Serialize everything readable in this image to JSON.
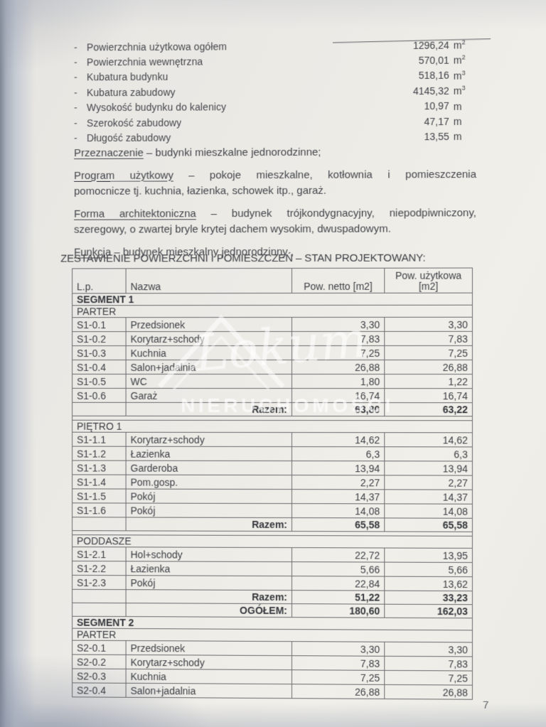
{
  "summary": {
    "bullet": "-",
    "items": [
      {
        "label": "Powierzchnia użytkowa ogółem",
        "value": "1296,24",
        "unit": "m",
        "sup": "2"
      },
      {
        "label": "Powierzchnia wewnętrzna",
        "value": "570,01",
        "unit": "m",
        "sup": "2"
      },
      {
        "label": "Kubatura budynku",
        "value": "518,16",
        "unit": "m",
        "sup": "3"
      },
      {
        "label": "Kubatura zabudowy",
        "value": "4145,32",
        "unit": "m",
        "sup": "3"
      },
      {
        "label": "Wysokość budynku do kalenicy",
        "value": "10,97",
        "unit": "m",
        "sup": ""
      },
      {
        "label": "Szerokość zabudowy",
        "value": "47,17",
        "unit": "m",
        "sup": ""
      },
      {
        "label": "Długość zabudowy",
        "value": "13,55",
        "unit": "m",
        "sup": ""
      }
    ]
  },
  "paragraphs": [
    {
      "lead": "Przeznaczenie",
      "line1": " – budynki mieszkalne jednorodzinne;",
      "line2": ""
    },
    {
      "lead": "Program użytkowy",
      "line1": " – pokoje mieszkalne, kotłownia i pomieszczenia",
      "line2": "pomocnicze tj. kuchnia, łazienka, schowek itp., garaż."
    },
    {
      "lead": "Forma architektoniczna",
      "line1": " – budynek trójkondygnacyjny, niepodpiwniczony,",
      "line2": "szeregowy, o zwartej bryle krytej dachem wysokim, dwuspadowym."
    },
    {
      "lead": "Funkcja",
      "line1": " – budynek mieszkalny jednorodzinny ,",
      "line2": ""
    }
  ],
  "section_heading": "ZESTAWIENIE POWIERZCHNI I POMIESZCZEŃ – STAN PROJEKTOWANY:",
  "table": {
    "headers": [
      "L.p.",
      "Nazwa",
      "Pow. netto [m2]",
      "Pow. użytkowa [m2]"
    ],
    "rows": [
      {
        "type": "section",
        "label": "SEGMENT 1",
        "bold": true
      },
      {
        "type": "section",
        "label": "PARTER",
        "bold": false
      },
      {
        "type": "data",
        "lp": "S1-0.1",
        "name": "Przedsionek",
        "netto": "3,30",
        "uzytkowa": "3,30"
      },
      {
        "type": "data",
        "lp": "S1-0.2",
        "name": "Korytarz+schody",
        "netto": "7,83",
        "uzytkowa": "7,83"
      },
      {
        "type": "data",
        "lp": "S1-0.3",
        "name": "Kuchnia",
        "netto": "7,25",
        "uzytkowa": "7,25"
      },
      {
        "type": "data",
        "lp": "S1-0.4",
        "name": "Salon+jadalnia",
        "netto": "26,88",
        "uzytkowa": "26,88"
      },
      {
        "type": "data",
        "lp": "S1-0.5",
        "name": "WC",
        "netto": "1,80",
        "uzytkowa": "1,22"
      },
      {
        "type": "data",
        "lp": "S1-0.6",
        "name": "Garaż",
        "netto": "16,74",
        "uzytkowa": "16,74"
      },
      {
        "type": "total",
        "label": "Razem:",
        "netto": "63,80",
        "uzytkowa": "63,22"
      },
      {
        "type": "spacer"
      },
      {
        "type": "section",
        "label": "PIĘTRO 1",
        "bold": false
      },
      {
        "type": "data",
        "lp": "S1-1.1",
        "name": "Korytarz+schody",
        "netto": "14,62",
        "uzytkowa": "14,62"
      },
      {
        "type": "data",
        "lp": "S1-1.2",
        "name": "Łazienka",
        "netto": "6,3",
        "uzytkowa": "6,3"
      },
      {
        "type": "data",
        "lp": "S1-1.3",
        "name": "Garderoba",
        "netto": "13,94",
        "uzytkowa": "13,94"
      },
      {
        "type": "data",
        "lp": "S1-1.4",
        "name": "Pom.gosp.",
        "netto": "2,27",
        "uzytkowa": "2,27"
      },
      {
        "type": "data",
        "lp": "S1-1.5",
        "name": "Pokój",
        "netto": "14,37",
        "uzytkowa": "14,37"
      },
      {
        "type": "data",
        "lp": "S1-1.6",
        "name": "Pokój",
        "netto": "14,08",
        "uzytkowa": "14,08"
      },
      {
        "type": "total",
        "label": "Razem:",
        "netto": "65,58",
        "uzytkowa": "65,58"
      },
      {
        "type": "spacer"
      },
      {
        "type": "section",
        "label": "PODDASZE",
        "bold": false
      },
      {
        "type": "data",
        "lp": "S1-2.1",
        "name": "Hol+schody",
        "netto": "22,72",
        "uzytkowa": "13,95"
      },
      {
        "type": "data",
        "lp": "S1-2.2",
        "name": "Łazienka",
        "netto": "5,66",
        "uzytkowa": "5,66"
      },
      {
        "type": "data",
        "lp": "S1-2.3",
        "name": "Pokój",
        "netto": "22,84",
        "uzytkowa": "13,62"
      },
      {
        "type": "total",
        "label": "Razem:",
        "netto": "51,22",
        "uzytkowa": "33,23"
      },
      {
        "type": "total",
        "label": "OGÓŁEM:",
        "netto": "180,60",
        "uzytkowa": "162,03"
      },
      {
        "type": "section",
        "label": "SEGMENT 2",
        "bold": true
      },
      {
        "type": "section",
        "label": "PARTER",
        "bold": false
      },
      {
        "type": "data",
        "lp": "S2-0.1",
        "name": "Przedsionek",
        "netto": "3,30",
        "uzytkowa": "3,30"
      },
      {
        "type": "data",
        "lp": "S2-0.2",
        "name": "Korytarz+schody",
        "netto": "7,83",
        "uzytkowa": "7,83"
      },
      {
        "type": "data",
        "lp": "S2-0.3",
        "name": "Kuchnia",
        "netto": "7,25",
        "uzytkowa": "7,25"
      },
      {
        "type": "data",
        "lp": "S2-0.4",
        "name": "Salon+jadalnia",
        "netto": "26,88",
        "uzytkowa": "26,88"
      }
    ]
  },
  "watermark": {
    "script": "Lokum",
    "block": "NIERUCHOMOŚCI"
  },
  "page": {
    "number": "7"
  }
}
